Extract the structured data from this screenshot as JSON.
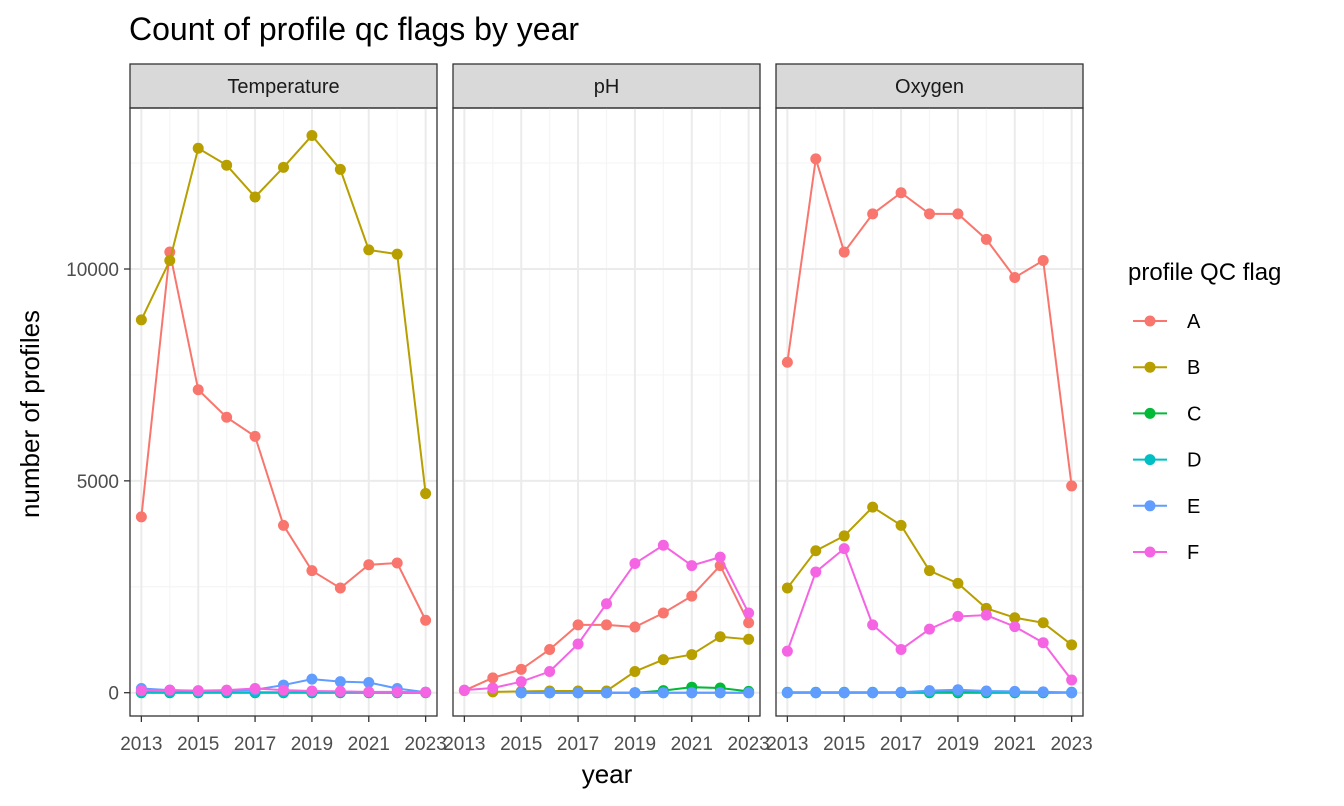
{
  "colors": {
    "A": "#F8766D",
    "B": "#B79F00",
    "C": "#00BA38",
    "D": "#00BFC4",
    "E": "#619CFF",
    "F": "#F564E3",
    "panel_border": "#333333",
    "strip_fill": "#D9D9D9",
    "grid_major": "#EBEBEB",
    "grid_minor": "#F5F5F5"
  },
  "chart_data": {
    "type": "line",
    "title": "Count of profile qc flags by year",
    "xlabel": "year",
    "ylabel": "number of profiles",
    "legend_title": "profile QC flag",
    "legend_position": "right",
    "grid": true,
    "x_ticks": [
      "2013",
      "2015",
      "2017",
      "2019",
      "2021",
      "2023"
    ],
    "y_ticks": [
      "0",
      "5000",
      "10000"
    ],
    "ylim": [
      -550,
      13800
    ],
    "xlim": [
      2012.6,
      2023.4
    ],
    "facets": [
      {
        "name": "Temperature",
        "series": [
          {
            "name": "A",
            "x": [
              2013,
              2014,
              2015,
              2016,
              2017,
              2018,
              2019,
              2020,
              2021,
              2022,
              2023
            ],
            "y": [
              4150,
              10400,
              7150,
              6500,
              6050,
              3950,
              2880,
              2470,
              3020,
              3060,
              1710
            ]
          },
          {
            "name": "B",
            "x": [
              2013,
              2014,
              2015,
              2016,
              2017,
              2018,
              2019,
              2020,
              2021,
              2022,
              2023
            ],
            "y": [
              8800,
              10200,
              12850,
              12450,
              11700,
              12400,
              13150,
              12350,
              10450,
              10350,
              4700
            ]
          },
          {
            "name": "C",
            "x": [
              2013,
              2014,
              2015,
              2016,
              2017,
              2018,
              2019,
              2020,
              2021,
              2022,
              2023
            ],
            "y": [
              0,
              0,
              0,
              0,
              0,
              0,
              0,
              0,
              0,
              0,
              0
            ]
          },
          {
            "name": "D",
            "x": [
              2013,
              2014,
              2015,
              2016,
              2017,
              2018,
              2019,
              2020,
              2021,
              2022,
              2023
            ],
            "y": [
              10,
              10,
              10,
              10,
              10,
              10,
              10,
              10,
              10,
              10,
              10
            ]
          },
          {
            "name": "E",
            "x": [
              2013,
              2014,
              2015,
              2016,
              2017,
              2018,
              2019,
              2020,
              2021,
              2022,
              2023
            ],
            "y": [
              100,
              60,
              40,
              50,
              70,
              180,
              320,
              260,
              240,
              100,
              10
            ]
          },
          {
            "name": "F",
            "x": [
              2013,
              2014,
              2015,
              2016,
              2017,
              2018,
              2019,
              2020,
              2021,
              2022,
              2023
            ],
            "y": [
              50,
              60,
              50,
              60,
              100,
              60,
              40,
              30,
              20,
              20,
              10
            ]
          }
        ]
      },
      {
        "name": "pH",
        "series": [
          {
            "name": "A",
            "x": [
              2013,
              2014,
              2015,
              2016,
              2017,
              2018,
              2019,
              2020,
              2021,
              2022,
              2023
            ],
            "y": [
              50,
              350,
              550,
              1020,
              1600,
              1600,
              1550,
              1880,
              2280,
              3000,
              1650
            ]
          },
          {
            "name": "B",
            "x": [
              2014,
              2015,
              2016,
              2017,
              2018,
              2019,
              2020,
              2021,
              2022,
              2023
            ],
            "y": [
              20,
              30,
              40,
              40,
              40,
              500,
              780,
              900,
              1320,
              1260
            ]
          },
          {
            "name": "C",
            "x": [
              2015,
              2016,
              2017,
              2018,
              2019,
              2020,
              2021,
              2022,
              2023
            ],
            "y": [
              0,
              0,
              0,
              0,
              0,
              50,
              130,
              110,
              30
            ]
          },
          {
            "name": "D",
            "x": [
              2015,
              2016,
              2017,
              2018,
              2019,
              2020,
              2021,
              2022,
              2023
            ],
            "y": [
              0,
              0,
              0,
              0,
              0,
              0,
              0,
              0,
              0
            ]
          },
          {
            "name": "E",
            "x": [
              2015,
              2016,
              2017,
              2018,
              2019,
              2020,
              2021,
              2022,
              2023
            ],
            "y": [
              0,
              0,
              0,
              0,
              0,
              0,
              0,
              0,
              0
            ]
          },
          {
            "name": "F",
            "x": [
              2013,
              2014,
              2015,
              2016,
              2017,
              2018,
              2019,
              2020,
              2021,
              2022,
              2023
            ],
            "y": [
              60,
              110,
              260,
              500,
              1150,
              2100,
              3050,
              3480,
              3000,
              3200,
              1880
            ]
          }
        ]
      },
      {
        "name": "Oxygen",
        "series": [
          {
            "name": "A",
            "x": [
              2013,
              2014,
              2015,
              2016,
              2017,
              2018,
              2019,
              2020,
              2021,
              2022,
              2023
            ],
            "y": [
              7800,
              12600,
              10400,
              11300,
              11800,
              11300,
              11300,
              10700,
              9800,
              10200,
              4880
            ]
          },
          {
            "name": "B",
            "x": [
              2013,
              2014,
              2015,
              2016,
              2017,
              2018,
              2019,
              2020,
              2021,
              2022,
              2023
            ],
            "y": [
              2470,
              3350,
              3700,
              4380,
              3950,
              2880,
              2580,
              1990,
              1770,
              1650,
              1130
            ]
          },
          {
            "name": "C",
            "x": [
              2013,
              2014,
              2015,
              2016,
              2017,
              2018,
              2019,
              2020,
              2021,
              2022,
              2023
            ],
            "y": [
              0,
              0,
              0,
              0,
              0,
              0,
              0,
              0,
              0,
              0,
              0
            ]
          },
          {
            "name": "D",
            "x": [
              2013,
              2014,
              2015,
              2016,
              2017,
              2018,
              2019,
              2020,
              2021,
              2022,
              2023
            ],
            "y": [
              10,
              10,
              10,
              10,
              10,
              20,
              30,
              20,
              10,
              10,
              10
            ]
          },
          {
            "name": "E",
            "x": [
              2013,
              2014,
              2015,
              2016,
              2017,
              2018,
              2019,
              2020,
              2021,
              2022,
              2023
            ],
            "y": [
              0,
              0,
              0,
              0,
              10,
              50,
              70,
              40,
              30,
              20,
              0
            ]
          },
          {
            "name": "F",
            "x": [
              2013,
              2014,
              2015,
              2016,
              2017,
              2018,
              2019,
              2020,
              2021,
              2022,
              2023
            ],
            "y": [
              980,
              2850,
              3400,
              1600,
              1020,
              1500,
              1800,
              1830,
              1560,
              1180,
              300
            ]
          }
        ]
      }
    ],
    "legend": [
      "A",
      "B",
      "C",
      "D",
      "E",
      "F"
    ]
  }
}
